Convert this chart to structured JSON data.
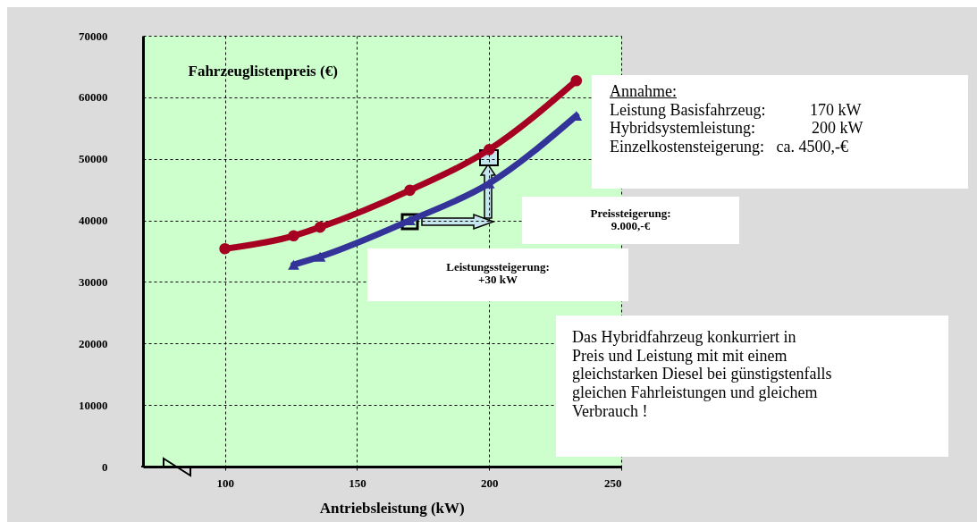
{
  "chart_data": {
    "type": "line",
    "xlabel": "Antriebsleistung (kW)",
    "ylabel": "Fahrzeuglistenpreis (€)",
    "xlim": [
      69,
      250
    ],
    "xticks": [
      100,
      150,
      200,
      250
    ],
    "ylim": [
      0,
      70000
    ],
    "yticks": [
      0,
      10000,
      20000,
      30000,
      40000,
      50000,
      60000,
      70000
    ],
    "grid": true,
    "series": [
      {
        "color": "#a50021",
        "marker": "circle",
        "x": [
          100,
          126,
          136,
          170,
          200,
          233
        ],
        "values": [
          35400,
          37500,
          38900,
          44900,
          51500,
          62700
        ]
      },
      {
        "color": "#333399",
        "marker": "triangle",
        "x": [
          126,
          136,
          170,
          200,
          233
        ],
        "values": [
          32800,
          34100,
          40000,
          46000,
          57000
        ]
      }
    ],
    "annotations": [
      "Annahme:\nLeistung Basisfahrzeug:           170 kW\nHybridsystemleistung:              200 kW\nEinzelkostensteigerung:   ca. 4500,-€",
      "Preissteigerung:\n9.000,-€",
      "Leistungssteigerung:\n+30 kW",
      "Das Hybridfahrzeug konkurriert in\nPreis und Leistung mit mit einem\ngleichstarken Diesel bei günstigstenfalls\ngleichen Fahrleistungen und gleichem\nVerbrauch !"
    ]
  }
}
